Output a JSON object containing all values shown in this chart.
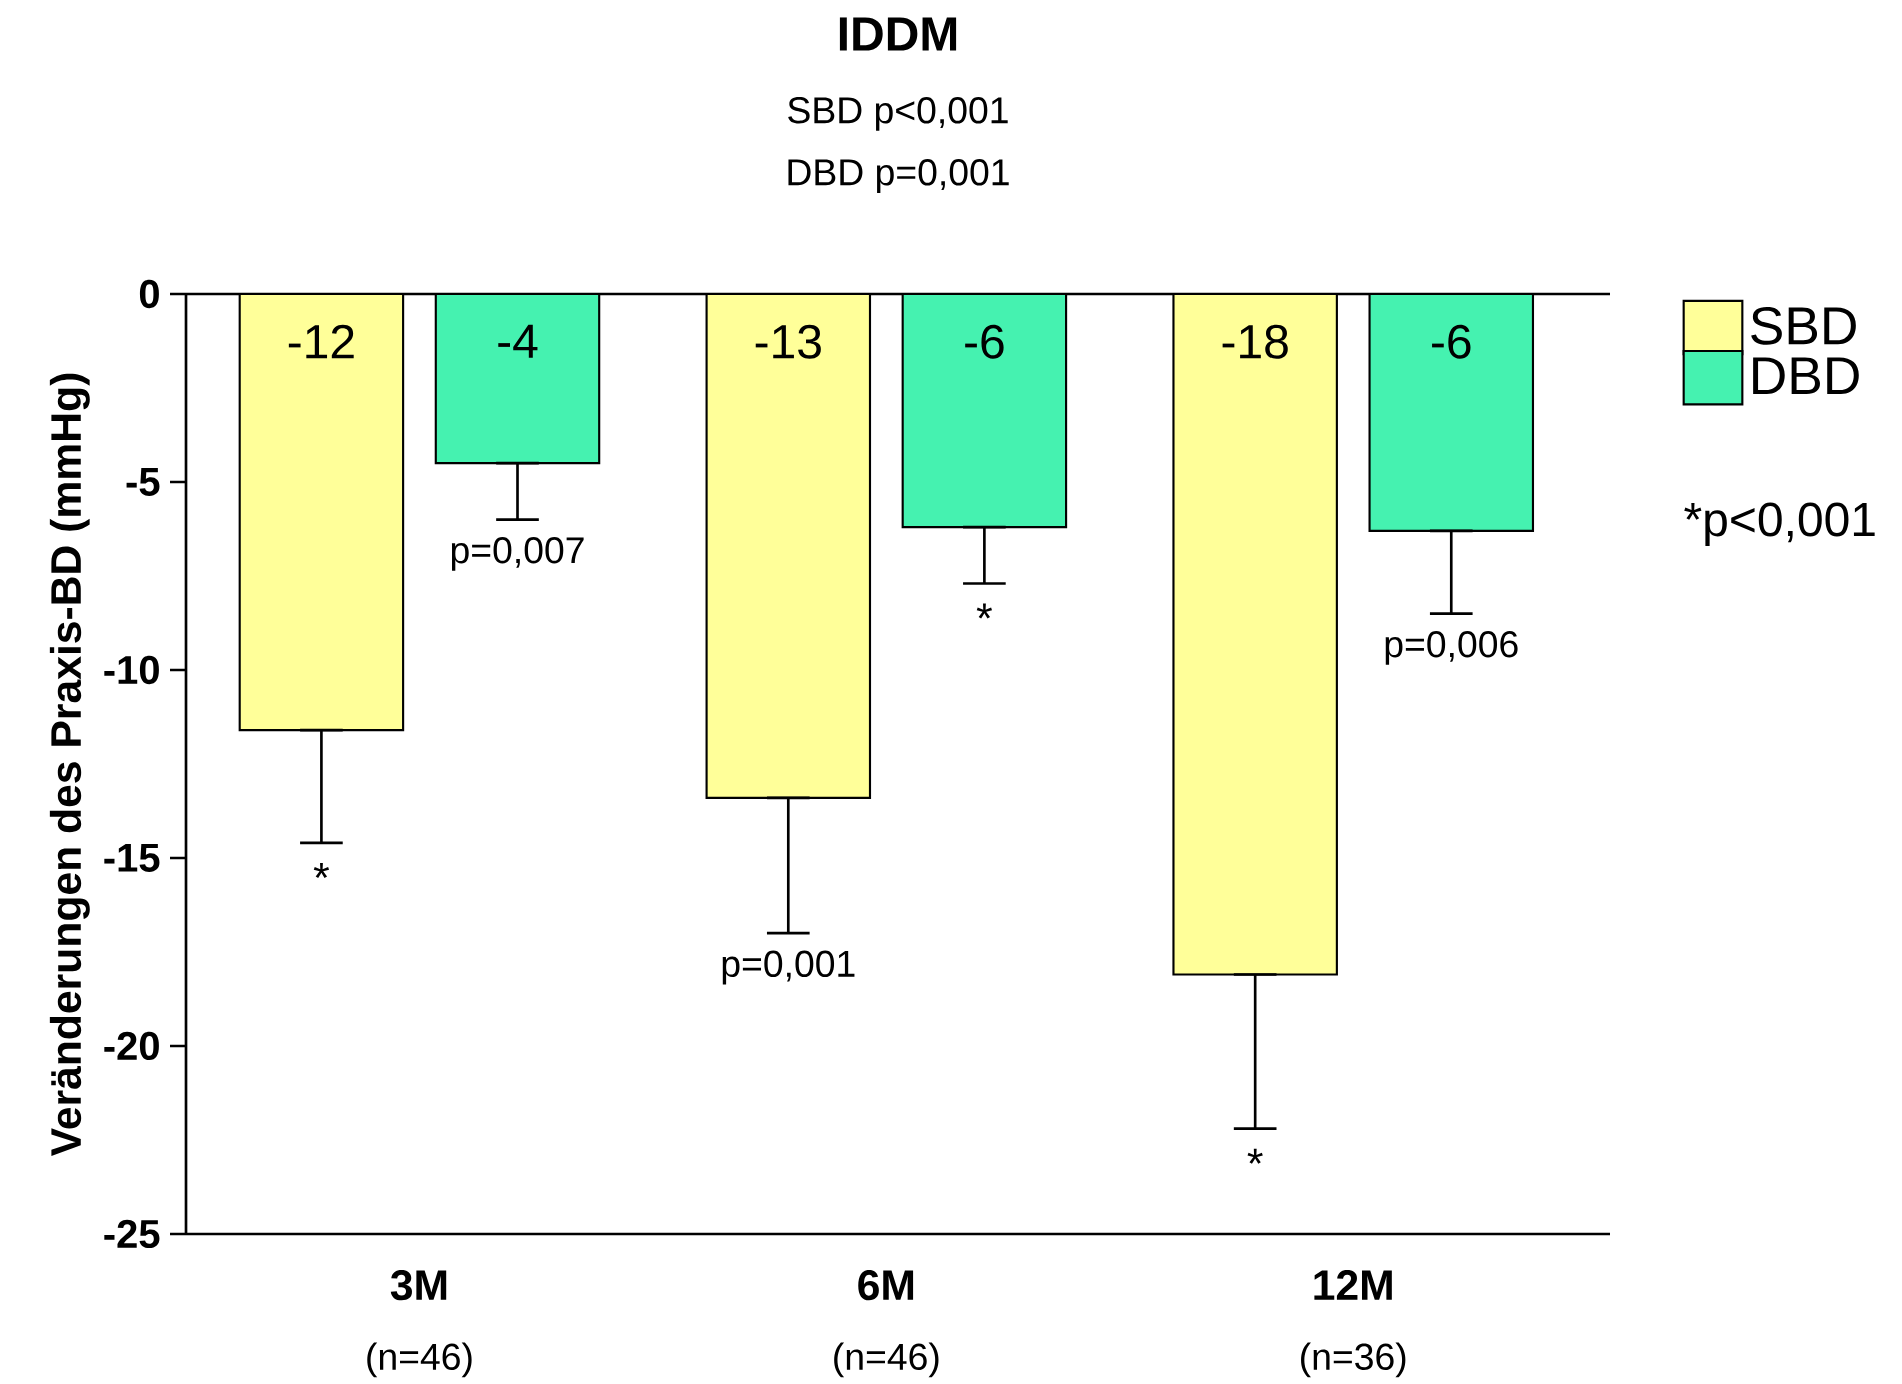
{
  "chart_data": {
    "type": "bar",
    "title": "IDDM",
    "subtitle": "SBD p<0,001",
    "ylabel": "Veränderungen des Praxis-BD (mmHg)",
    "categories": [
      "3M",
      "6M",
      "12M"
    ],
    "series": [
      {
        "name": "SBD",
        "color": "#ffff99",
        "values": [
          -11.6,
          -13.4,
          -18.1
        ],
        "value_labels": [
          "-12",
          "-13",
          "-18"
        ],
        "errors": [
          [
            -14.6,
            -11.6
          ],
          [
            -17.0,
            -13.4
          ],
          [
            -22.2,
            -18.1
          ]
        ]
      },
      {
        "name": "DBD",
        "color": "#45f2b0",
        "values": [
          -4.5,
          -6.2,
          -6.3
        ],
        "value_labels": [
          "-4",
          "-6",
          "-6"
        ],
        "errors": [
          [
            -6.0,
            -4.5
          ],
          [
            -7.7,
            -6.2
          ],
          [
            -8.5,
            -6.3
          ]
        ]
      }
    ],
    "ylim": [
      -25,
      0
    ],
    "yticks": [
      0,
      -5,
      -10,
      -15,
      -20,
      -25
    ],
    "grid": false,
    "legend": "right",
    "annotations": [
      "DBD p=0,001",
      "*p<0,001",
      "*",
      "p=0,007",
      "p=0,001",
      "*",
      "*",
      "p=0,006",
      "(n=46)",
      "(n=46)",
      "(n=36)"
    ]
  }
}
